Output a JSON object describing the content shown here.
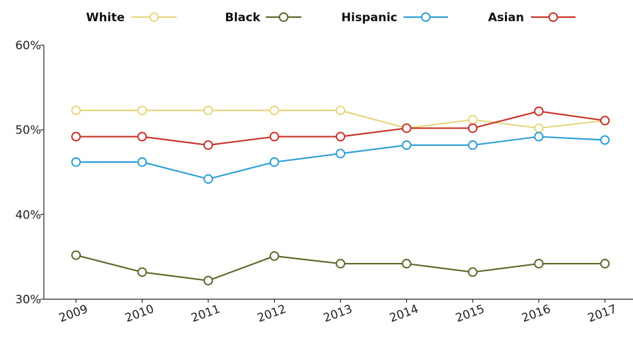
{
  "chart_data": {
    "type": "line",
    "title": "",
    "xlabel": "",
    "ylabel": "",
    "x": [
      "2009",
      "2010",
      "2011",
      "2012",
      "2013",
      "2014",
      "2015",
      "2016",
      "2017"
    ],
    "ylim": [
      30,
      60
    ],
    "yticks": [
      30,
      40,
      50,
      60
    ],
    "ytick_labels": [
      "30%",
      "40%",
      "50%",
      "60%"
    ],
    "grid": false,
    "legend_position": "top",
    "series": [
      {
        "name": "White",
        "color": "#e8d67e",
        "values": [
          52.3,
          52.3,
          52.3,
          52.3,
          52.3,
          50.2,
          51.2,
          50.2,
          51.1
        ]
      },
      {
        "name": "Black",
        "color": "#5a6b2a",
        "values": [
          35.2,
          33.2,
          32.2,
          35.1,
          34.2,
          34.2,
          33.2,
          34.2,
          34.2
        ]
      },
      {
        "name": "Hispanic",
        "color": "#2e9fd6",
        "values": [
          46.2,
          46.2,
          44.2,
          46.2,
          47.2,
          48.2,
          48.2,
          49.2,
          48.8
        ]
      },
      {
        "name": "Asian",
        "color": "#c83228",
        "values": [
          49.2,
          49.2,
          48.2,
          49.2,
          49.2,
          50.2,
          50.2,
          52.2,
          51.1
        ]
      }
    ]
  }
}
